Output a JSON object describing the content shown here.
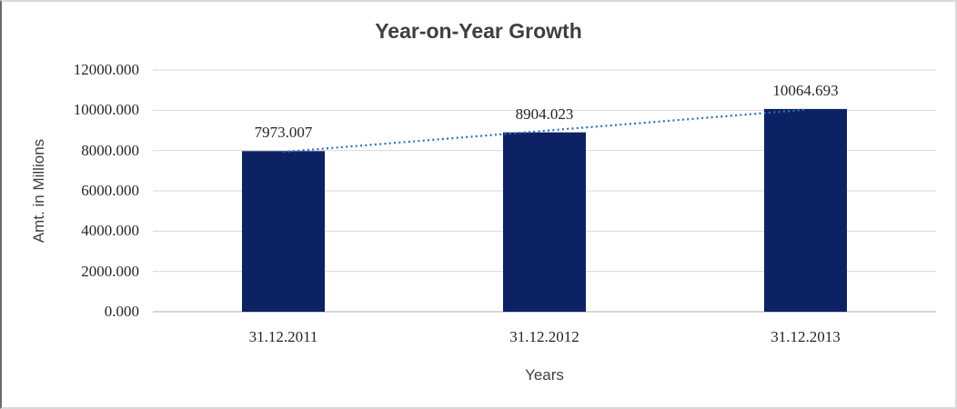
{
  "chart_data": {
    "type": "bar",
    "title": "Year-on-Year Growth",
    "xlabel": "Years",
    "ylabel": "Amt. in Millions",
    "categories": [
      "31.12.2011",
      "31.12.2012",
      "31.12.2013"
    ],
    "values": [
      7973.007,
      8904.023,
      10064.693
    ],
    "data_labels": [
      "7973.007",
      "8904.023",
      "10064.693"
    ],
    "ylim": [
      0,
      12000
    ],
    "y_ticks": [
      0,
      2000,
      4000,
      6000,
      8000,
      10000,
      12000
    ],
    "y_tick_labels": [
      "0.000",
      "2000.000",
      "4000.000",
      "6000.000",
      "8000.000",
      "10000.000",
      "12000.000"
    ],
    "grid": "horizontal",
    "legend": "none",
    "trendline": {
      "type": "linear",
      "style": "dotted"
    },
    "colors": {
      "bar": "#0c2264",
      "trendline": "#2e6fb7",
      "gridline": "#d9d9d9",
      "axis_line": "#c8c8c8",
      "title_text": "#3f3f3f",
      "label_text": "#262626"
    }
  }
}
